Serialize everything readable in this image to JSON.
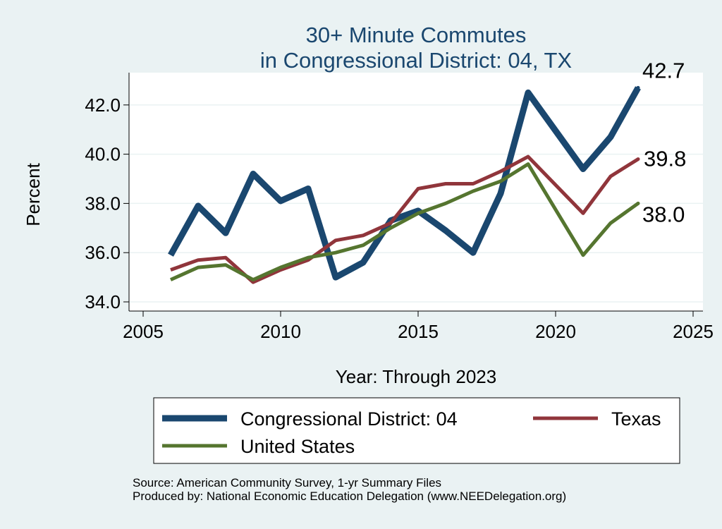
{
  "chart_data": {
    "type": "line",
    "title": "30+ Minute Commutes",
    "subtitle": "in Congressional District:  04, TX",
    "xlabel": "Year: Through 2023",
    "ylabel": "Percent",
    "xlim": [
      2005,
      2025
    ],
    "ylim": [
      34.0,
      43.0
    ],
    "x_ticks": [
      2005,
      2010,
      2015,
      2020,
      2025
    ],
    "x_tick_labels": [
      "2005",
      "2010",
      "2015",
      "2020",
      "2025"
    ],
    "y_ticks": [
      34,
      36,
      38,
      40,
      42
    ],
    "y_tick_labels": [
      "34.0",
      "36.0",
      "38.0",
      "40.0",
      "42.0"
    ],
    "grid": true,
    "legend_position": "bottom",
    "series": [
      {
        "name": "Congressional District:  04",
        "color": "#1a476f",
        "x": [
          2006,
          2007,
          2008,
          2009,
          2010,
          2011,
          2012,
          2013,
          2014,
          2015,
          2016,
          2017,
          2018,
          2019,
          2021,
          2022,
          2023
        ],
        "values": [
          35.9,
          37.9,
          36.8,
          39.2,
          38.1,
          38.6,
          35.0,
          35.6,
          37.3,
          37.7,
          36.9,
          36.0,
          38.4,
          42.5,
          39.4,
          40.7,
          42.7
        ],
        "end_label": "42.7"
      },
      {
        "name": "Texas",
        "color": "#90353b",
        "x": [
          2006,
          2007,
          2008,
          2009,
          2010,
          2011,
          2012,
          2013,
          2014,
          2015,
          2016,
          2017,
          2018,
          2019,
          2021,
          2022,
          2023
        ],
        "values": [
          35.3,
          35.7,
          35.8,
          34.8,
          35.3,
          35.7,
          36.5,
          36.7,
          37.2,
          38.6,
          38.8,
          38.8,
          39.3,
          39.9,
          37.6,
          39.1,
          39.8
        ],
        "end_label": "39.8"
      },
      {
        "name": "United States",
        "color": "#55752f",
        "x": [
          2006,
          2007,
          2008,
          2009,
          2010,
          2011,
          2012,
          2013,
          2014,
          2015,
          2016,
          2017,
          2018,
          2019,
          2021,
          2022,
          2023
        ],
        "values": [
          34.9,
          35.4,
          35.5,
          34.9,
          35.4,
          35.8,
          36.0,
          36.3,
          37.0,
          37.6,
          38.0,
          38.5,
          38.9,
          39.6,
          35.9,
          37.2,
          38.0
        ],
        "end_label": "38.0"
      }
    ]
  },
  "legend": {
    "items": [
      "Congressional District:  04",
      "Texas",
      "United States"
    ]
  },
  "source": {
    "line1": "Source: American Community Survey, 1-yr Summary Files",
    "line2": "Produced by: National Economic Education Delegation (www.NEEDelegation.org)"
  }
}
